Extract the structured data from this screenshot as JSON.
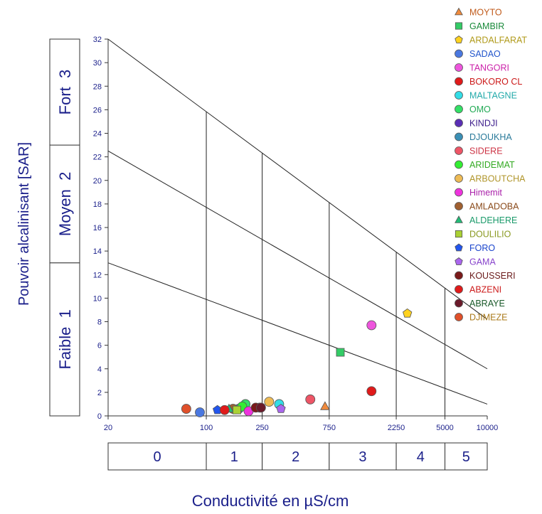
{
  "chart_data": {
    "type": "scatter",
    "ylabel": "Pouvoir alcalinisant [SAR]",
    "xlabel": "Conductivité en µS/cm",
    "x_scale": "log",
    "xlim": [
      20,
      10000
    ],
    "ylim": [
      0,
      32
    ],
    "x_ticks": [
      "20",
      "100",
      "250",
      "750",
      "2250",
      "5000",
      "10000"
    ],
    "x_tick_values": [
      20,
      100,
      250,
      750,
      2250,
      5000,
      10000
    ],
    "y_ticks": [
      0,
      2,
      4,
      6,
      8,
      10,
      12,
      14,
      16,
      18,
      20,
      22,
      24,
      26,
      28,
      30,
      32
    ],
    "y_bands": [
      {
        "label": "Faible  1",
        "range": [
          0,
          13
        ]
      },
      {
        "label": "Moyen  2",
        "range": [
          13,
          23
        ]
      },
      {
        "label": "Fort  3",
        "range": [
          23,
          32
        ]
      }
    ],
    "x_classes": [
      {
        "label": "0",
        "range": [
          20,
          100
        ]
      },
      {
        "label": "1",
        "range": [
          100,
          250
        ]
      },
      {
        "label": "2",
        "range": [
          250,
          750
        ]
      },
      {
        "label": "3",
        "range": [
          750,
          2250
        ]
      },
      {
        "label": "4",
        "range": [
          2250,
          5000
        ]
      },
      {
        "label": "5",
        "range": [
          5000,
          10000
        ]
      }
    ],
    "boundary_lines": [
      {
        "points": [
          [
            20,
            13
          ],
          [
            10000,
            1
          ]
        ]
      },
      {
        "points": [
          [
            20,
            22.5
          ],
          [
            10000,
            4
          ]
        ]
      },
      {
        "points": [
          [
            20,
            32
          ],
          [
            10000,
            8.2
          ]
        ]
      }
    ],
    "series": [
      {
        "name": "MOYTO",
        "marker": "triangle",
        "color": "#f08a3c",
        "x": 700,
        "y": 0.8
      },
      {
        "name": "GAMBIR",
        "marker": "square",
        "color": "#33cc66",
        "x": 900,
        "y": 5.4
      },
      {
        "name": "ARDALFARAT",
        "marker": "pentagon",
        "color": "#ffd21f",
        "x": 2700,
        "y": 8.7
      },
      {
        "name": "SADAO",
        "marker": "circle",
        "color": "#4a78e0",
        "x": 90,
        "y": 0.3
      },
      {
        "name": "TANGORI",
        "marker": "circle",
        "color": "#ee55dd",
        "x": 1500,
        "y": 7.7
      },
      {
        "name": "BOKORO CL",
        "marker": "circle",
        "color": "#e01a1a",
        "x": 1500,
        "y": 2.1
      },
      {
        "name": "MALTAGNE",
        "marker": "circle",
        "color": "#33dde6",
        "x": 330,
        "y": 1.0
      },
      {
        "name": "OMO",
        "marker": "circle",
        "color": "#33e066",
        "x": 190,
        "y": 1.0
      },
      {
        "name": "KINDJI",
        "marker": "circle",
        "color": "#5a2fb5",
        "x": 240,
        "y": 0.7
      },
      {
        "name": "DJOUKHA",
        "marker": "circle",
        "color": "#3a8fb5",
        "x": 170,
        "y": 0.6
      },
      {
        "name": "SIDERE",
        "marker": "circle",
        "color": "#ee5566",
        "x": 550,
        "y": 1.4
      },
      {
        "name": "ARIDEMAT",
        "marker": "circle",
        "color": "#33ee33",
        "x": 180,
        "y": 0.8
      },
      {
        "name": "ARBOUTCHA",
        "marker": "circle",
        "color": "#eebb55",
        "x": 280,
        "y": 1.2
      },
      {
        "name": "Himemit",
        "marker": "circle",
        "color": "#ee33dd",
        "x": 200,
        "y": 0.4
      },
      {
        "name": "AMLADOBA",
        "marker": "circle",
        "color": "#a06030",
        "x": 155,
        "y": 0.6
      },
      {
        "name": "ALDEHERE",
        "marker": "triangle",
        "color": "#22bb77",
        "x": 145,
        "y": 0.6
      },
      {
        "name": "DOULILIO",
        "marker": "square",
        "color": "#aad133",
        "x": 165,
        "y": 0.5
      },
      {
        "name": "FORO",
        "marker": "pentagon",
        "color": "#2255ee",
        "x": 120,
        "y": 0.5
      },
      {
        "name": "GAMA",
        "marker": "pentagon",
        "color": "#aa66ee",
        "x": 340,
        "y": 0.6
      },
      {
        "name": "KOUSSERI",
        "marker": "circle",
        "color": "#7a1a1a",
        "x": 225,
        "y": 0.7
      },
      {
        "name": "ABZENI",
        "marker": "circle",
        "color": "#e01a1a",
        "x": 135,
        "y": 0.5
      },
      {
        "name": "ABRAYE",
        "marker": "circle",
        "color": "#6a1a2a",
        "x": 245,
        "y": 0.7
      },
      {
        "name": "DJIMEZE",
        "marker": "circle",
        "color": "#e0502a",
        "x": 72,
        "y": 0.6
      }
    ],
    "legend_text_colors": [
      "#c05a1a",
      "#1a8a3a",
      "#b09a1a",
      "#2255cc",
      "#cc22aa",
      "#cc1a1a",
      "#22aaaa",
      "#22aa55",
      "#3a1a8a",
      "#2a7a9a",
      "#cc3344",
      "#33aa22",
      "#b0952a",
      "#aa22aa",
      "#8a4a1a",
      "#1a9a6a",
      "#8a9a22",
      "#1a44cc",
      "#8844cc",
      "#6a1a1a",
      "#cc1a1a",
      "#1a5a2a",
      "#aa7a1a"
    ],
    "legend": "right",
    "grid": false
  }
}
